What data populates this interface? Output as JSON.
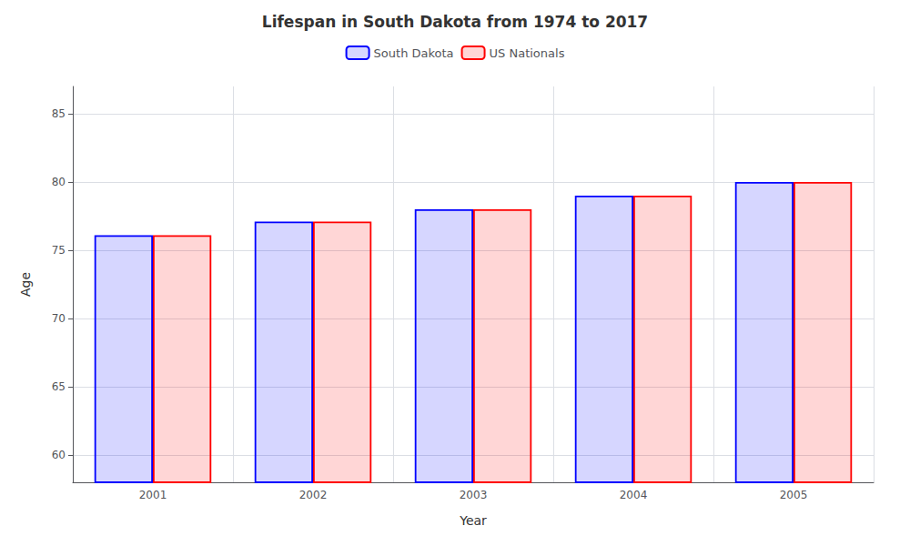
{
  "chart_data": {
    "type": "bar",
    "title": "Lifespan in South Dakota from 1974 to 2017",
    "xlabel": "Year",
    "ylabel": "Age",
    "categories": [
      "2001",
      "2002",
      "2003",
      "2004",
      "2005"
    ],
    "series": [
      {
        "name": "South Dakota",
        "color": "#0000ff",
        "values": [
          76.1,
          77.1,
          78.0,
          79.0,
          80.0
        ]
      },
      {
        "name": "US Nationals",
        "color": "#ff0000",
        "values": [
          76.1,
          77.1,
          78.0,
          79.0,
          80.0
        ]
      }
    ],
    "ylim": [
      58,
      87
    ],
    "yticks": [
      60,
      65,
      70,
      75,
      80,
      85
    ],
    "grid": true,
    "legend": "top"
  }
}
